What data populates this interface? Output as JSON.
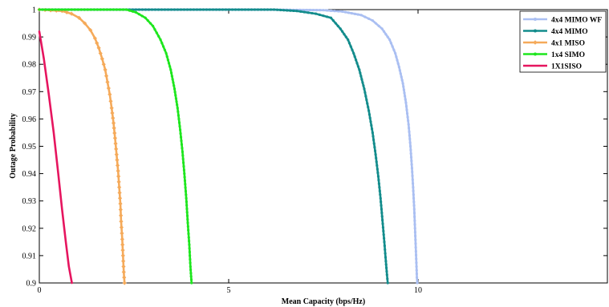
{
  "chart_data": {
    "type": "line",
    "title": "",
    "xlabel": "Mean Capacity (bps/Hz)",
    "ylabel": "Outage Probability",
    "xlim": [
      0,
      15
    ],
    "ylim": [
      0.9,
      1.0
    ],
    "x_ticks": [
      0,
      5,
      10
    ],
    "x_tick_labels": [
      "0",
      "5",
      "10"
    ],
    "y_ticks": [
      0.9,
      0.91,
      0.92,
      0.93,
      0.94,
      0.95,
      0.96,
      0.97,
      0.98,
      0.99,
      1.0
    ],
    "y_tick_labels": [
      "0.9",
      "0.91",
      "0.92",
      "0.93",
      "0.94",
      "0.95",
      "0.96",
      "0.97",
      "0.98",
      "0.99",
      "1"
    ],
    "grid": false,
    "legend_position": "top-right",
    "series": [
      {
        "name": "4x4 MIMO WF",
        "color": "#aabff2",
        "marker": "dot",
        "points": [
          [
            0,
            1.0
          ],
          [
            6.0,
            1.0
          ],
          [
            7.5,
            0.9998
          ],
          [
            8.0,
            0.9993
          ],
          [
            8.5,
            0.998
          ],
          [
            8.8,
            0.996
          ],
          [
            9.05,
            0.993
          ],
          [
            9.25,
            0.989
          ],
          [
            9.4,
            0.984
          ],
          [
            9.5,
            0.979
          ],
          [
            9.6,
            0.973
          ],
          [
            9.68,
            0.966
          ],
          [
            9.75,
            0.958
          ],
          [
            9.8,
            0.95
          ],
          [
            9.84,
            0.942
          ],
          [
            9.87,
            0.935
          ],
          [
            9.9,
            0.927
          ],
          [
            9.92,
            0.92
          ],
          [
            9.94,
            0.913
          ],
          [
            9.96,
            0.906
          ],
          [
            9.97,
            0.902
          ],
          [
            9.98,
            0.9
          ]
        ]
      },
      {
        "name": "4x4 MIMO",
        "color": "#138c8c",
        "marker": "dot",
        "points": [
          [
            0,
            1.0
          ],
          [
            6.2,
            1.0
          ],
          [
            6.8,
            0.9995
          ],
          [
            7.3,
            0.9985
          ],
          [
            7.7,
            0.997
          ],
          [
            7.95,
            0.993
          ],
          [
            8.15,
            0.989
          ],
          [
            8.3,
            0.984
          ],
          [
            8.45,
            0.978
          ],
          [
            8.58,
            0.971
          ],
          [
            8.7,
            0.963
          ],
          [
            8.8,
            0.955
          ],
          [
            8.88,
            0.947
          ],
          [
            8.95,
            0.939
          ],
          [
            9.01,
            0.931
          ],
          [
            9.06,
            0.923
          ],
          [
            9.11,
            0.915
          ],
          [
            9.15,
            0.908
          ],
          [
            9.18,
            0.903
          ],
          [
            9.2,
            0.9
          ]
        ]
      },
      {
        "name": "4x1 MISO",
        "color": "#f5aa5a",
        "marker": "diamond",
        "points": [
          [
            0,
            1.0
          ],
          [
            0.6,
            0.9995
          ],
          [
            0.85,
            0.9985
          ],
          [
            1.05,
            0.997
          ],
          [
            1.2,
            0.995
          ],
          [
            1.35,
            0.9925
          ],
          [
            1.47,
            0.9895
          ],
          [
            1.57,
            0.986
          ],
          [
            1.66,
            0.982
          ],
          [
            1.74,
            0.978
          ],
          [
            1.8,
            0.9735
          ],
          [
            1.86,
            0.969
          ],
          [
            1.91,
            0.964
          ],
          [
            1.96,
            0.9585
          ],
          [
            2.0,
            0.953
          ],
          [
            2.04,
            0.947
          ],
          [
            2.08,
            0.941
          ],
          [
            2.11,
            0.935
          ],
          [
            2.14,
            0.929
          ],
          [
            2.16,
            0.9225
          ],
          [
            2.19,
            0.916
          ],
          [
            2.21,
            0.91
          ],
          [
            2.23,
            0.904
          ],
          [
            2.25,
            0.9
          ]
        ]
      },
      {
        "name": "1x4 SIMO",
        "color": "#1ee61e",
        "marker": "dot",
        "points": [
          [
            0,
            1.0
          ],
          [
            2.3,
            1.0
          ],
          [
            2.55,
            0.999
          ],
          [
            2.8,
            0.997
          ],
          [
            3.0,
            0.994
          ],
          [
            3.2,
            0.989
          ],
          [
            3.35,
            0.984
          ],
          [
            3.47,
            0.978
          ],
          [
            3.57,
            0.971
          ],
          [
            3.65,
            0.964
          ],
          [
            3.72,
            0.956
          ],
          [
            3.78,
            0.948
          ],
          [
            3.83,
            0.94
          ],
          [
            3.88,
            0.931
          ],
          [
            3.92,
            0.922
          ],
          [
            3.96,
            0.914
          ],
          [
            3.99,
            0.906
          ],
          [
            4.02,
            0.9
          ]
        ]
      },
      {
        "name": "1X1SISO",
        "color": "#e6155f",
        "marker": "none",
        "points": [
          [
            0,
            0.992
          ],
          [
            0.12,
            0.982
          ],
          [
            0.25,
            0.969
          ],
          [
            0.38,
            0.955
          ],
          [
            0.5,
            0.94
          ],
          [
            0.6,
            0.927
          ],
          [
            0.7,
            0.915
          ],
          [
            0.78,
            0.906
          ],
          [
            0.86,
            0.9
          ]
        ]
      }
    ]
  }
}
